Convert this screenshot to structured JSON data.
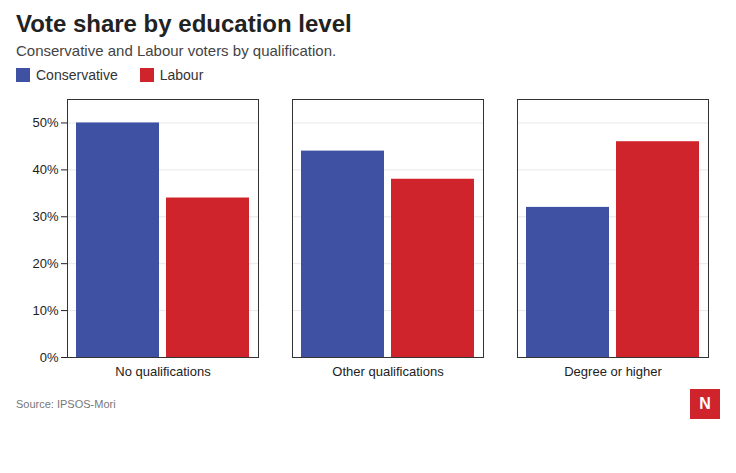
{
  "chart_data": {
    "type": "bar",
    "title": "Vote share by education level",
    "subtitle": "Conservative and Labour voters by qualification.",
    "categories": [
      "No qualifications",
      "Other qualifications",
      "Degree or higher"
    ],
    "series": [
      {
        "name": "Conservative",
        "color": "#3F51A3",
        "values": [
          50,
          44,
          32
        ]
      },
      {
        "name": "Labour",
        "color": "#D0242C",
        "values": [
          34,
          38,
          46
        ]
      }
    ],
    "ylim": [
      0,
      55
    ],
    "yticks": [
      {
        "value": 0,
        "label": "0%"
      },
      {
        "value": 10,
        "label": "10%"
      },
      {
        "value": 20,
        "label": "20%"
      },
      {
        "value": 30,
        "label": "30%"
      },
      {
        "value": 40,
        "label": "40%"
      },
      {
        "value": 50,
        "label": "50%"
      }
    ],
    "grid": true,
    "legend": "top-left",
    "annotations": [
      "Source: IPSOS-Mori",
      "N"
    ]
  }
}
